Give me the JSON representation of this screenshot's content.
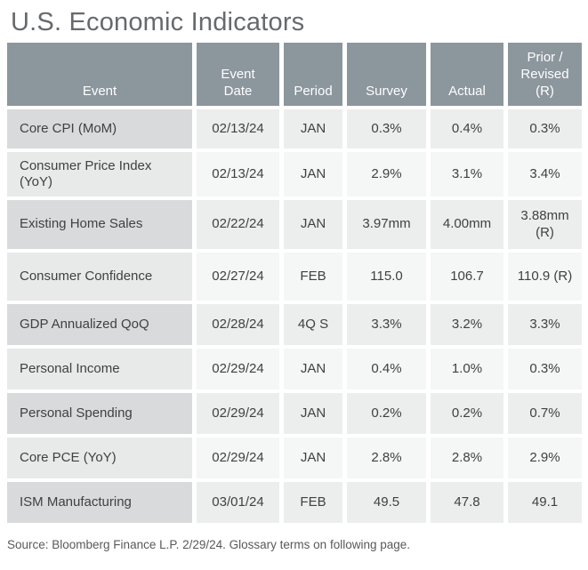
{
  "page": {
    "title": "U.S. Economic Indicators",
    "source_note": "Source: Bloomberg Finance L.P. 2/29/24. Glossary terms on following page."
  },
  "table": {
    "columns": [
      {
        "key": "event",
        "label": "Event"
      },
      {
        "key": "event_date",
        "label": "Event\nDate"
      },
      {
        "key": "period",
        "label": "Period"
      },
      {
        "key": "survey",
        "label": "Survey"
      },
      {
        "key": "actual",
        "label": "Actual"
      },
      {
        "key": "prior_revised",
        "label": "Prior /\nRevised\n(R)"
      }
    ],
    "rows": [
      {
        "event": "Core CPI (MoM)",
        "event_date": "02/13/24",
        "period": "JAN",
        "survey": "0.3%",
        "actual": "0.4%",
        "prior_revised": "0.3%"
      },
      {
        "event": "Consumer Price Index (YoY)",
        "event_date": "02/13/24",
        "period": "JAN",
        "survey": "2.9%",
        "actual": "3.1%",
        "prior_revised": "3.4%"
      },
      {
        "event": "Existing Home Sales",
        "event_date": "02/22/24",
        "period": "JAN",
        "survey": "3.97mm",
        "actual": "4.00mm",
        "prior_revised": "3.88mm\n(R)"
      },
      {
        "event": "Consumer Confidence",
        "event_date": "02/27/24",
        "period": "FEB",
        "survey": "115.0",
        "actual": "106.7",
        "prior_revised": "110.9 (R)"
      },
      {
        "event": "GDP Annualized QoQ",
        "event_date": "02/28/24",
        "period": "4Q S",
        "survey": "3.3%",
        "actual": "3.2%",
        "prior_revised": "3.3%"
      },
      {
        "event": "Personal Income",
        "event_date": "02/29/24",
        "period": "JAN",
        "survey": "0.4%",
        "actual": "1.0%",
        "prior_revised": "0.3%"
      },
      {
        "event": "Personal Spending",
        "event_date": "02/29/24",
        "period": "JAN",
        "survey": "0.2%",
        "actual": "0.2%",
        "prior_revised": "0.7%"
      },
      {
        "event": "Core PCE (YoY)",
        "event_date": "02/29/24",
        "period": "JAN",
        "survey": "2.8%",
        "actual": "2.8%",
        "prior_revised": "2.9%"
      },
      {
        "event": "ISM Manufacturing",
        "event_date": "03/01/24",
        "period": "FEB",
        "survey": "49.5",
        "actual": "47.8",
        "prior_revised": "49.1"
      }
    ]
  },
  "colors": {
    "header_bg": "#8C969D",
    "header_text": "#FFFFFF",
    "row_odd_event_bg": "#D9DADB",
    "row_odd_cell_bg": "#ECEDED",
    "row_even_event_bg": "#E8E9E9",
    "row_even_cell_bg": "#F5F6F6",
    "body_text": "#414042",
    "title_text": "#67696C",
    "source_text": "#58595B"
  }
}
